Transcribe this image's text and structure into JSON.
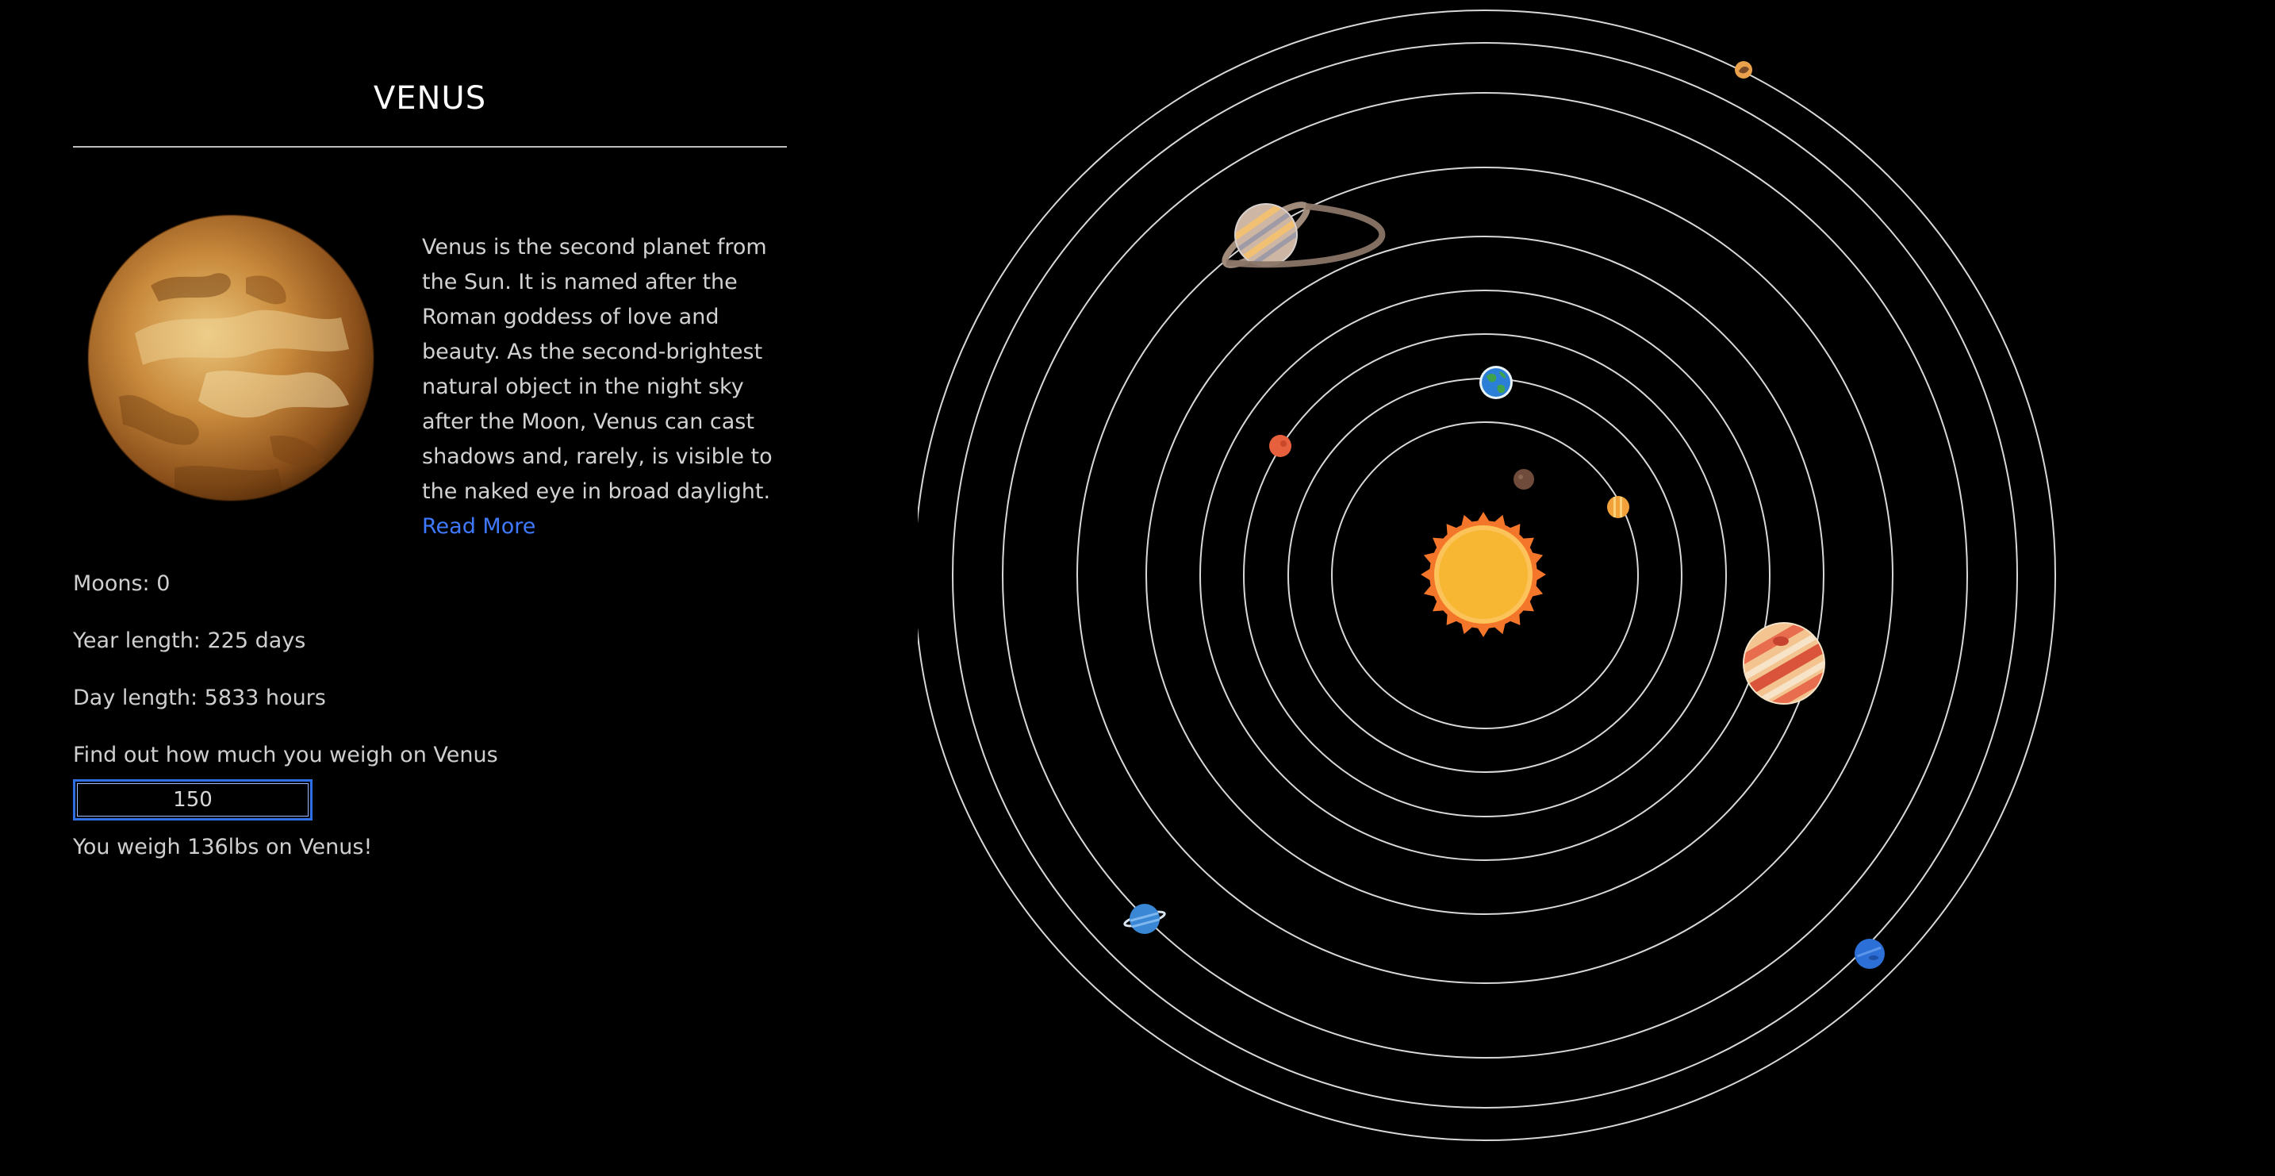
{
  "planet": {
    "name": "VENUS",
    "description": "Venus is the second planet from the Sun. It is named after the Roman goddess of love and beauty. As the second-brightest natural object in the night sky after the Moon, Venus can cast shadows and, rarely, is visible to the naked eye in broad daylight.",
    "read_more": "Read More",
    "moons": "Moons: 0",
    "year_length": "Year length: 225 days",
    "day_length": "Day length: 5833 hours",
    "weigh_prompt": "Find out how much you weigh on Venus",
    "weight_value": "150",
    "weight_result": "You weigh 136lbs on Venus!"
  },
  "colors": {
    "background": "#000000",
    "link": "#3f79ff",
    "input_border": "#2f6fe4",
    "orbit": "#d8d8d8",
    "sun": "#f7b733",
    "sun_rays": "#f4762a"
  },
  "solar_system": {
    "bodies": [
      "sun-icon",
      "mercury-icon",
      "venus-icon",
      "earth-icon",
      "mars-icon",
      "jupiter-icon",
      "saturn-icon",
      "uranus-icon",
      "neptune-icon",
      "pluto-icon"
    ]
  }
}
